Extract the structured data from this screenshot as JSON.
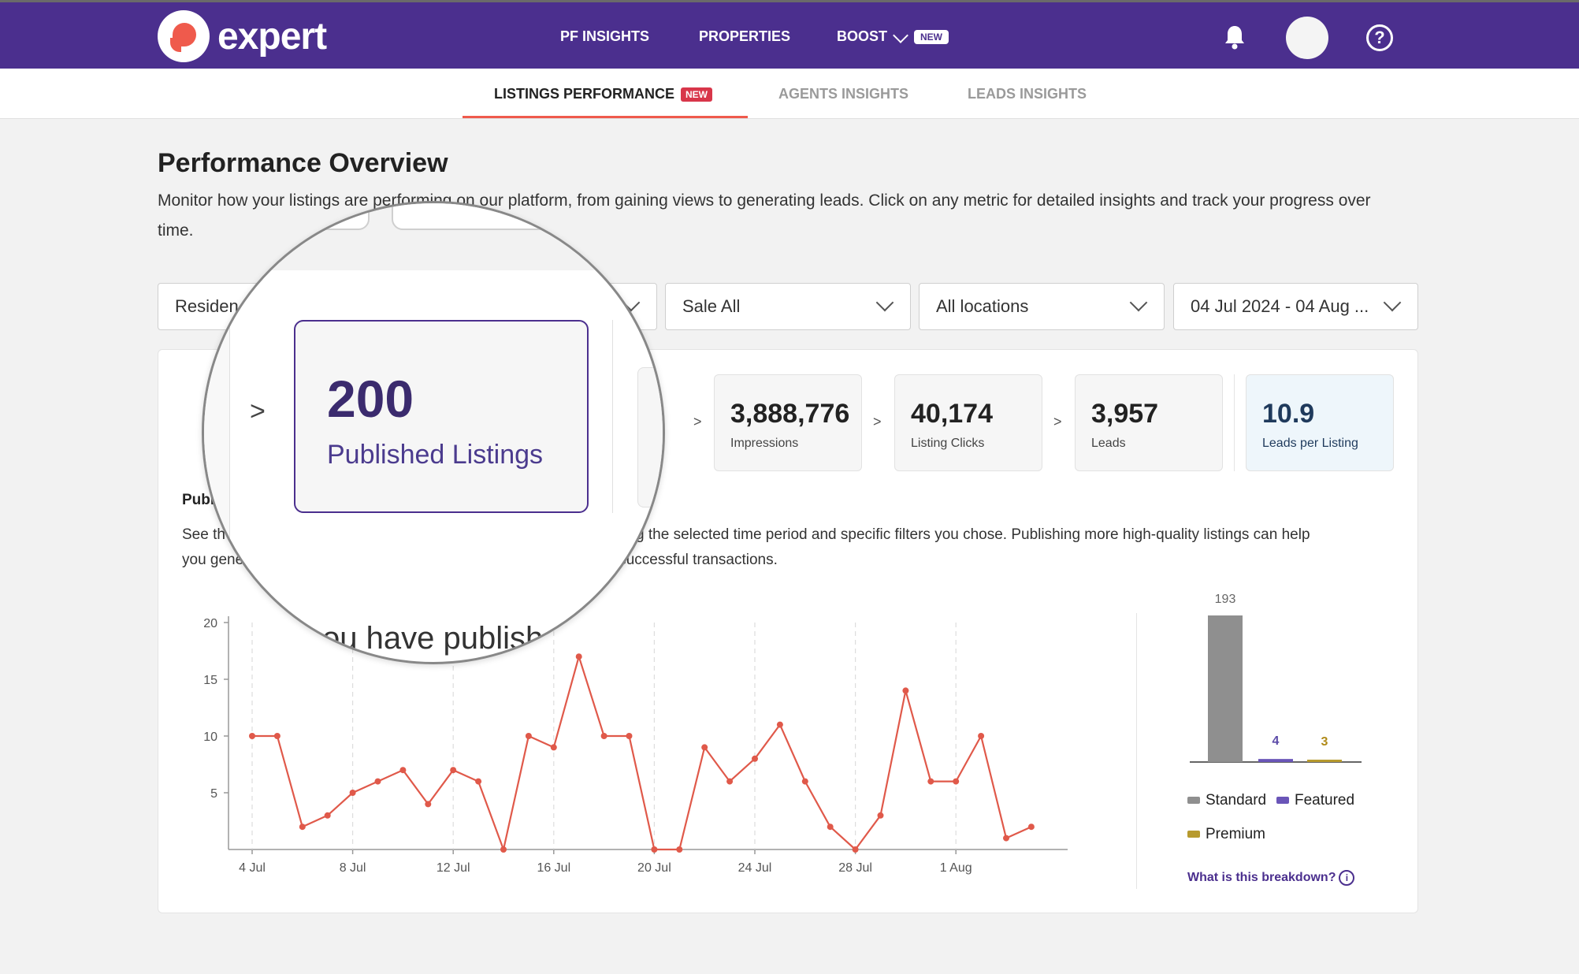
{
  "brand": {
    "name": "expert"
  },
  "topnav": {
    "items": [
      "PF INSIGHTS",
      "PROPERTIES",
      "BOOST"
    ],
    "boost_badge": "NEW"
  },
  "subtabs": {
    "items": [
      {
        "label": "LISTINGS PERFORMANCE",
        "badge": "NEW",
        "active": true
      },
      {
        "label": "AGENTS INSIGHTS"
      },
      {
        "label": "LEADS INSIGHTS"
      }
    ]
  },
  "overview": {
    "title": "Performance Overview",
    "description": "Monitor how your listings are performing on our platform, from gaining views to generating leads. Click on any metric for detailed insights and track your progress over time."
  },
  "filters": {
    "category": "Residential",
    "category_visible": "Residen",
    "type": "Sale All",
    "location": "All locations",
    "date_range": "04 Jul 2024 - 04 Aug ..."
  },
  "metrics": [
    {
      "value": "3,888,776",
      "label": "Impressions"
    },
    {
      "value": "40,174",
      "label": "Listing Clicks"
    },
    {
      "value": "3,957",
      "label": "Leads"
    },
    {
      "value": "10.9",
      "label": "Leads per Listing"
    }
  ],
  "magnified": {
    "value": "200",
    "label": "Published Listings",
    "arrow": ">",
    "caption": "ou have publish"
  },
  "section": {
    "title": "Publ",
    "body_line1_start": "See th",
    "body_line1_end": "ring the selected time period and specific filters you chose. Publishing more high-quality listings can help",
    "body_line2_start": "you gene",
    "body_line2_end": "successful transactions."
  },
  "chart_data": [
    {
      "type": "line",
      "title": "",
      "xlabel": "",
      "ylabel": "",
      "ylim": [
        0,
        20
      ],
      "y_ticks": [
        5,
        10,
        15,
        20
      ],
      "x_tick_labels": [
        "4 Jul",
        "8 Jul",
        "12 Jul",
        "16 Jul",
        "20 Jul",
        "24 Jul",
        "28 Jul",
        "1 Aug"
      ],
      "series": [
        {
          "name": "Published Listings",
          "color": "#e0594a",
          "values": [
            10,
            10,
            2,
            3,
            5,
            6,
            7,
            4,
            7,
            6,
            0,
            10,
            9,
            17,
            10,
            10,
            0,
            0,
            9,
            6,
            8,
            11,
            6,
            2,
            0,
            3,
            14,
            6,
            6,
            10,
            1,
            2
          ]
        }
      ]
    },
    {
      "type": "bar",
      "categories": [
        "Standard",
        "Featured",
        "Premium"
      ],
      "values": [
        193,
        4,
        3
      ],
      "colors": [
        "#8f8f8f",
        "#6a55b8",
        "#b79a2e"
      ],
      "label_colors": [
        "#666666",
        "#5b4aa8",
        "#b08a18"
      ]
    }
  ],
  "breakdown_link": "What is this breakdown?",
  "colors": {
    "brand_purple": "#4b2f8e",
    "accent_red": "#ef5a4c",
    "new_badge_red": "#d8364a"
  }
}
